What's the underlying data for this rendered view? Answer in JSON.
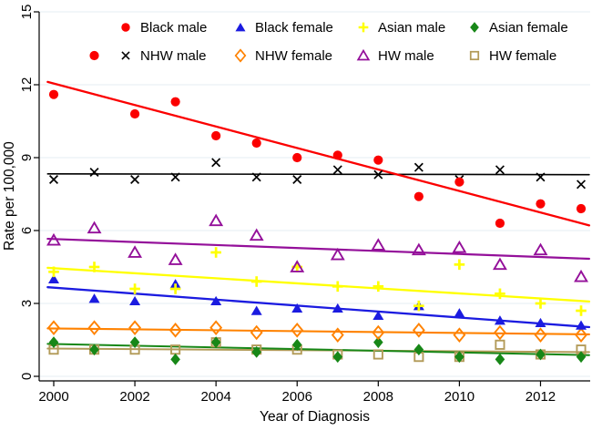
{
  "figure": {
    "background": "#ffffff",
    "grid_color": "#e4edf3",
    "axis_color": "#000000",
    "tick_font_px": 15
  },
  "chart_data": {
    "type": "scatter",
    "title": "",
    "xlabel": "Year of Diagnosis",
    "ylabel": "Rate per 100,000",
    "xlim": [
      1999.65,
      2013.25
    ],
    "ylim": [
      0,
      15
    ],
    "xticks": [
      2000,
      2002,
      2004,
      2006,
      2008,
      2010,
      2012
    ],
    "yticks": [
      0,
      3,
      6,
      9,
      12,
      15
    ],
    "grid": true,
    "legend_position": "top-inside-two-rows",
    "x": [
      2000,
      2001,
      2002,
      2003,
      2004,
      2005,
      2006,
      2007,
      2008,
      2009,
      2010,
      2011,
      2012,
      2013
    ],
    "series": [
      {
        "id": "black-male",
        "name": "Black male",
        "marker": "filled-circle",
        "color": "#fb0000",
        "values": [
          11.6,
          13.2,
          10.8,
          11.3,
          9.9,
          9.6,
          9.0,
          9.1,
          8.9,
          7.4,
          8.0,
          6.3,
          7.1,
          6.9
        ],
        "trend_2000": 12.05,
        "trend_2013": 6.3
      },
      {
        "id": "black-female",
        "name": "Black female",
        "marker": "filled-triangle",
        "color": "#1b1be0",
        "values": [
          4.0,
          3.2,
          3.1,
          3.8,
          3.1,
          2.7,
          2.8,
          2.8,
          2.5,
          2.9,
          2.6,
          2.3,
          2.2,
          2.1
        ],
        "trend_2000": 3.65,
        "trend_2013": 2.05
      },
      {
        "id": "asian-male",
        "name": "Asian male",
        "marker": "plus",
        "color": "#ffff00",
        "values": [
          4.3,
          4.5,
          3.6,
          3.6,
          5.1,
          3.9,
          4.5,
          3.7,
          3.7,
          2.9,
          4.6,
          3.4,
          3.0,
          2.7
        ],
        "trend_2000": 4.45,
        "trend_2013": 3.1
      },
      {
        "id": "asian-female",
        "name": "Asian female",
        "marker": "filled-diamond",
        "color": "#178717",
        "values": [
          1.4,
          1.1,
          1.4,
          0.7,
          1.4,
          1.0,
          1.3,
          0.8,
          1.4,
          1.1,
          0.8,
          0.7,
          0.9,
          0.8
        ],
        "trend_2000": 1.33,
        "trend_2013": 0.88
      },
      {
        "id": "nhw-male",
        "name": "NHW male",
        "marker": "x",
        "color": "#000000",
        "values": [
          8.1,
          8.4,
          8.1,
          8.2,
          8.8,
          8.2,
          8.1,
          8.5,
          8.3,
          8.6,
          8.1,
          8.5,
          8.2,
          7.9
        ],
        "trend_2000": 8.33,
        "trend_2013": 8.3
      },
      {
        "id": "nhw-female",
        "name": "NHW female",
        "marker": "open-diamond",
        "color": "#ff8200",
        "values": [
          2.0,
          2.0,
          2.0,
          1.9,
          2.0,
          1.8,
          1.9,
          1.7,
          1.8,
          1.9,
          1.7,
          1.8,
          1.7,
          1.7
        ],
        "trend_2000": 1.97,
        "trend_2013": 1.73
      },
      {
        "id": "hw-male",
        "name": "HW male",
        "marker": "open-triangle",
        "color": "#94109a",
        "values": [
          5.6,
          6.1,
          5.1,
          4.8,
          6.4,
          5.8,
          4.5,
          5.0,
          5.4,
          5.2,
          5.3,
          4.6,
          5.2,
          4.1
        ],
        "trend_2000": 5.65,
        "trend_2013": 4.85
      },
      {
        "id": "hw-female",
        "name": "HW female",
        "marker": "open-square",
        "color": "#b39b59",
        "values": [
          1.1,
          1.1,
          1.1,
          1.1,
          1.4,
          1.1,
          1.1,
          0.9,
          0.9,
          0.8,
          0.8,
          1.3,
          0.9,
          1.1
        ],
        "trend_2000": 1.14,
        "trend_2013": 1.0
      }
    ],
    "legend_rows": [
      [
        "Black male",
        "Black female",
        "Asian male",
        "Asian female"
      ],
      [
        "NHW male",
        "NHW female",
        "HW male",
        "HW female"
      ]
    ]
  }
}
